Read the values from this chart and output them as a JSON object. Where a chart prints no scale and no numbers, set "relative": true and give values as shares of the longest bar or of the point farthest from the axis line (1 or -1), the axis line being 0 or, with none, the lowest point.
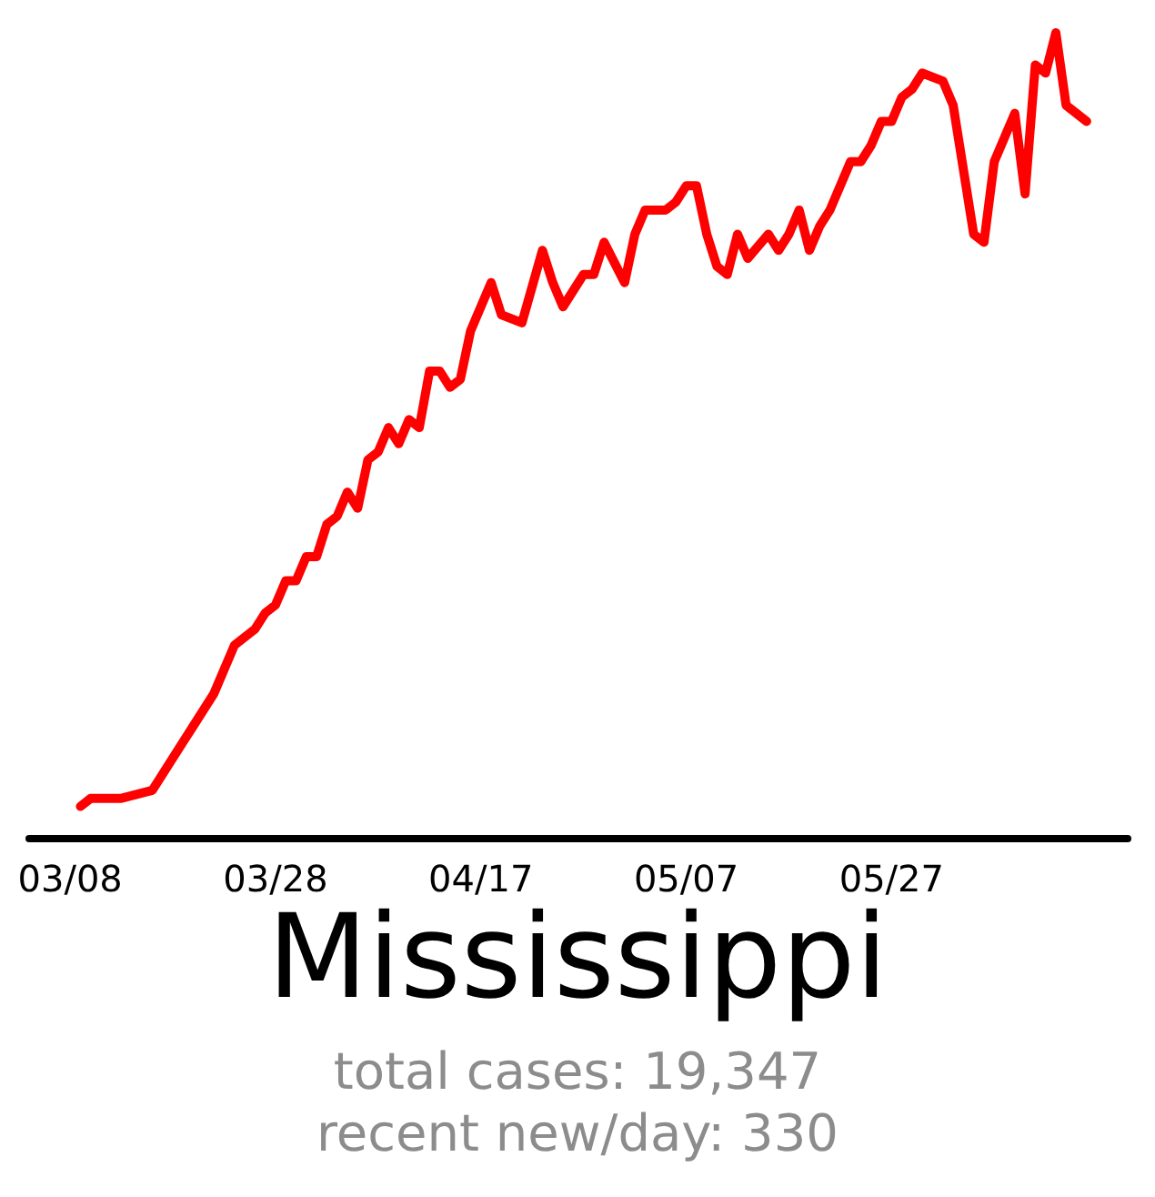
{
  "chart_data": {
    "type": "line",
    "title": "Mississippi",
    "annotations": [
      "total cases: 19,347",
      "recent new/day: 330"
    ],
    "relative": true,
    "grid": false,
    "marker": "none",
    "line_style": "solid",
    "xlim": [
      "--03-04",
      "--06-19"
    ],
    "xticks": [
      {
        "value": "--03-08",
        "label": "03/08"
      },
      {
        "value": "--03-28",
        "label": "03/28"
      },
      {
        "value": "--04-17",
        "label": "04/17"
      },
      {
        "value": "--05-07",
        "label": "05/07"
      },
      {
        "value": "--05-27",
        "label": "05/27"
      }
    ],
    "x": [
      "--03-09",
      "--03-10",
      "--03-11",
      "--03-13",
      "--03-16",
      "--03-17",
      "--03-19",
      "--03-20",
      "--03-22",
      "--03-24",
      "--03-26",
      "--03-27",
      "--03-28",
      "--03-29",
      "--03-30",
      "--03-31",
      "--04-01",
      "--04-02",
      "--04-03",
      "--04-04",
      "--04-05",
      "--04-06",
      "--04-07",
      "--04-08",
      "--04-09",
      "--04-10",
      "--04-11",
      "--04-12",
      "--04-13",
      "--04-14",
      "--04-15",
      "--04-16",
      "--04-18",
      "--04-19",
      "--04-21",
      "--04-23",
      "--04-24",
      "--04-25",
      "--04-27",
      "--04-28",
      "--04-29",
      "--05-01",
      "--05-02",
      "--05-03",
      "--05-04",
      "--05-05",
      "--05-06",
      "--05-07",
      "--05-08",
      "--05-09",
      "--05-10",
      "--05-11",
      "--05-12",
      "--05-13",
      "--05-15",
      "--05-16",
      "--05-17",
      "--05-18",
      "--05-19",
      "--05-20",
      "--05-21",
      "--05-23",
      "--05-24",
      "--05-25",
      "--05-26",
      "--05-27",
      "--05-28",
      "--05-29",
      "--05-30",
      "--06-01",
      "--06-02",
      "--06-04",
      "--06-05",
      "--06-06",
      "--06-08",
      "--06-09",
      "--06-10",
      "--06-11",
      "--06-12",
      "--06-13",
      "--06-15"
    ],
    "series": [
      {
        "color": "#ff0000",
        "values": [
          0.04,
          0.05,
          0.05,
          0.05,
          0.06,
          0.08,
          0.12,
          0.14,
          0.18,
          0.24,
          0.26,
          0.28,
          0.29,
          0.32,
          0.32,
          0.35,
          0.35,
          0.39,
          0.4,
          0.43,
          0.41,
          0.47,
          0.48,
          0.51,
          0.49,
          0.52,
          0.51,
          0.58,
          0.58,
          0.56,
          0.57,
          0.63,
          0.69,
          0.65,
          0.64,
          0.73,
          0.69,
          0.66,
          0.7,
          0.7,
          0.74,
          0.69,
          0.75,
          0.78,
          0.78,
          0.78,
          0.79,
          0.81,
          0.81,
          0.75,
          0.71,
          0.7,
          0.75,
          0.72,
          0.75,
          0.73,
          0.75,
          0.78,
          0.73,
          0.76,
          0.78,
          0.84,
          0.84,
          0.86,
          0.89,
          0.89,
          0.92,
          0.93,
          0.95,
          0.94,
          0.91,
          0.75,
          0.74,
          0.84,
          0.9,
          0.8,
          0.96,
          0.95,
          1,
          0.91,
          0.89
        ]
      }
    ]
  }
}
